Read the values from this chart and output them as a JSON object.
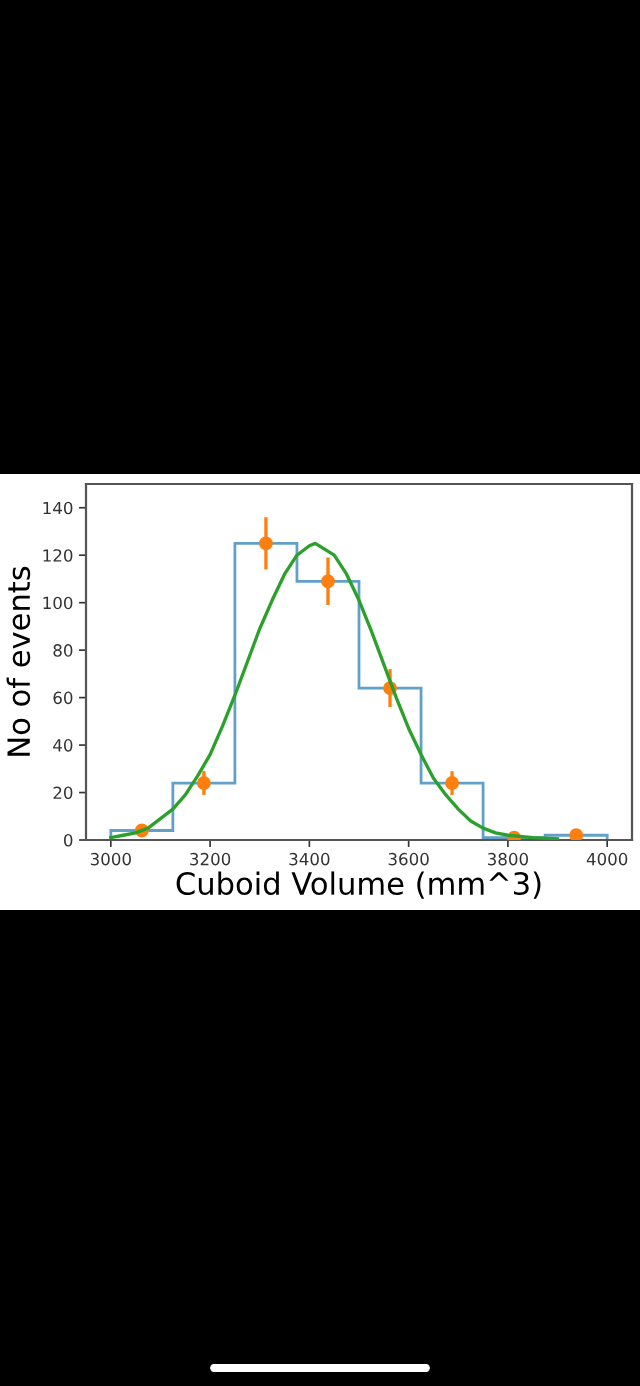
{
  "chart_data": {
    "type": "histogram",
    "xlabel": "Cuboid Volume (mm^3)",
    "ylabel": "No of events",
    "xlim": [
      2950,
      4050
    ],
    "ylim": [
      0,
      150
    ],
    "xticks": [
      3000,
      3200,
      3400,
      3600,
      3800,
      4000
    ],
    "yticks": [
      0,
      20,
      40,
      60,
      80,
      100,
      120,
      140
    ],
    "grid": false,
    "legend": false,
    "bins": [
      3000,
      3125,
      3250,
      3375,
      3500,
      3625,
      3750,
      3875,
      4000
    ],
    "values": [
      4,
      24,
      125,
      109,
      64,
      24,
      1,
      2
    ],
    "color": "#1f77b4",
    "series": [
      {
        "type": "scatter",
        "color": "#ff7f0e",
        "marker": "circle",
        "x": [
          3062.5,
          3187.5,
          3312.5,
          3437.5,
          3562.5,
          3687.5,
          3812.5,
          3937.5
        ],
        "values": [
          4,
          24,
          125,
          109,
          64,
          24,
          1,
          2
        ],
        "errors": [
          null,
          5,
          11,
          10,
          8,
          5,
          null,
          null
        ]
      },
      {
        "type": "line",
        "color": "#2ca02c",
        "marker": "none",
        "x": [
          3000,
          3025,
          3050,
          3075,
          3100,
          3125,
          3150,
          3175,
          3200,
          3225,
          3250,
          3275,
          3300,
          3325,
          3350,
          3375,
          3400,
          3412,
          3450,
          3475,
          3500,
          3525,
          3550,
          3575,
          3600,
          3625,
          3650,
          3675,
          3700,
          3725,
          3750,
          3775,
          3800,
          3850,
          3900
        ],
        "values": [
          1,
          2,
          3,
          5,
          9,
          13,
          19,
          27,
          36,
          48,
          61,
          75,
          89,
          101,
          112,
          120,
          124,
          125,
          120,
          112,
          101,
          88,
          74,
          60,
          47,
          36,
          26,
          19,
          13,
          8,
          5,
          3,
          2,
          1,
          0.5
        ]
      }
    ]
  }
}
